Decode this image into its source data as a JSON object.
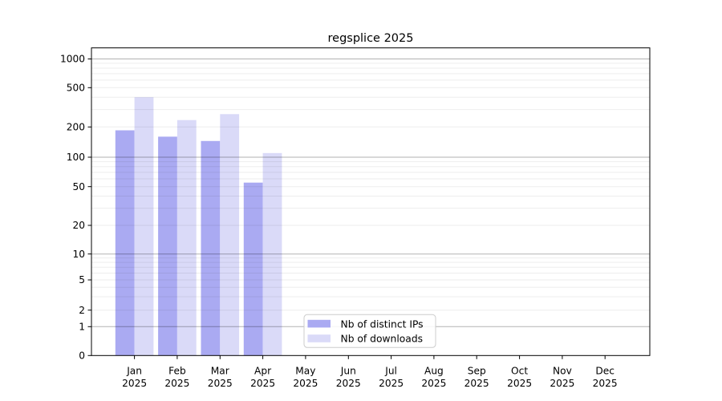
{
  "chart_data": {
    "type": "bar",
    "title": "regsplice 2025",
    "categories": [
      "Jan",
      "Feb",
      "Mar",
      "Apr",
      "May",
      "Jun",
      "Jul",
      "Aug",
      "Sep",
      "Oct",
      "Nov",
      "Dec"
    ],
    "x_tick_second_line": "2025",
    "series": [
      {
        "name": "Nb of distinct IPs",
        "color": "#aaaaf2",
        "values": [
          185,
          160,
          145,
          55,
          null,
          null,
          null,
          null,
          null,
          null,
          null,
          null
        ]
      },
      {
        "name": "Nb of downloads",
        "color": "#dadaf8",
        "values": [
          400,
          235,
          270,
          110,
          null,
          null,
          null,
          null,
          null,
          null,
          null,
          null
        ]
      }
    ],
    "yticks": [
      0,
      1,
      2,
      5,
      10,
      20,
      50,
      100,
      200,
      500,
      1000
    ],
    "ylim": [
      0,
      1300
    ],
    "xlabel": "",
    "ylabel": "",
    "yscale": "log-like with zero baseline",
    "grid": {
      "major_horizontal": true,
      "minor_horizontal": true
    },
    "legend": {
      "position": "inside-bottom-center",
      "entries": [
        "Nb of distinct IPs",
        "Nb of downloads"
      ]
    },
    "colors": {
      "background": "#ffffff",
      "frame": "#000000",
      "major_grid": "#b5b5b5",
      "minor_grid": "#ededed",
      "legend_border": "#cccccc"
    }
  }
}
